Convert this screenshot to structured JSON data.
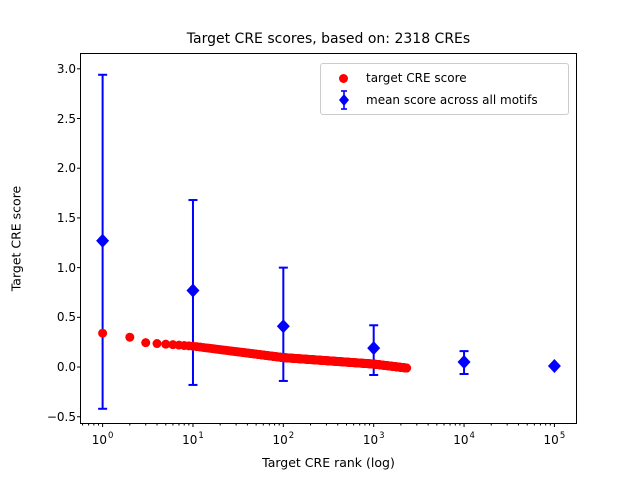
{
  "chart_data": {
    "type": "scatter",
    "title": "Target CRE scores, based on: 2318 CREs",
    "xlabel": "Target CRE rank (log)",
    "ylabel": "Target CRE score",
    "x_scale": "log",
    "grid": false,
    "xlim": [
      0.562,
      177828
    ],
    "ylim": [
      -0.563,
      3.159
    ],
    "x_ticks": [
      {
        "value": 1,
        "base": "10",
        "exp": "0"
      },
      {
        "value": 10,
        "base": "10",
        "exp": "1"
      },
      {
        "value": 100,
        "base": "10",
        "exp": "2"
      },
      {
        "value": 1000,
        "base": "10",
        "exp": "3"
      },
      {
        "value": 10000,
        "base": "10",
        "exp": "4"
      },
      {
        "value": 100000,
        "base": "10",
        "exp": "5"
      }
    ],
    "y_ticks": [
      {
        "value": 3.0,
        "label": "3.0"
      },
      {
        "value": 2.5,
        "label": "2.5"
      },
      {
        "value": 2.0,
        "label": "2.0"
      },
      {
        "value": 1.5,
        "label": "1.5"
      },
      {
        "value": 1.0,
        "label": "1.0"
      },
      {
        "value": 0.5,
        "label": "0.5"
      },
      {
        "value": 0.0,
        "label": "0.0"
      },
      {
        "value": -0.5,
        "label": "−0.5"
      }
    ],
    "series": [
      {
        "name": "target CRE score",
        "color": "#ff0000",
        "marker": "circle",
        "n_points": 2318,
        "rank_range": [
          1,
          2318
        ],
        "curve_anchors_log10rank_score": [
          [
            0,
            0.34
          ],
          [
            0.301,
            0.3
          ],
          [
            0.477,
            0.245
          ],
          [
            0.7,
            0.23
          ],
          [
            1,
            0.21
          ],
          [
            2,
            0.095
          ],
          [
            3,
            0.03
          ],
          [
            3.365,
            -0.01
          ]
        ]
      },
      {
        "name": "mean score across all motifs",
        "color": "#0000ff",
        "marker": "diamond",
        "points": [
          {
            "x": 1,
            "y": 1.27,
            "err_low": -0.42,
            "err_high": 2.94
          },
          {
            "x": 10,
            "y": 0.77,
            "err_low": -0.18,
            "err_high": 1.68
          },
          {
            "x": 100,
            "y": 0.41,
            "err_low": -0.14,
            "err_high": 1.0
          },
          {
            "x": 1000,
            "y": 0.19,
            "err_low": -0.08,
            "err_high": 0.42
          },
          {
            "x": 10000,
            "y": 0.05,
            "err_low": -0.07,
            "err_high": 0.16
          },
          {
            "x": 100000,
            "y": 0.01,
            "err_low": 0.01,
            "err_high": 0.01
          }
        ]
      }
    ],
    "legend": {
      "position": "upper center-right",
      "entries": [
        {
          "label": "target CRE score",
          "marker": "red-circle"
        },
        {
          "label": "mean score across all motifs",
          "marker": "blue-diamond-errorbar"
        }
      ]
    }
  }
}
